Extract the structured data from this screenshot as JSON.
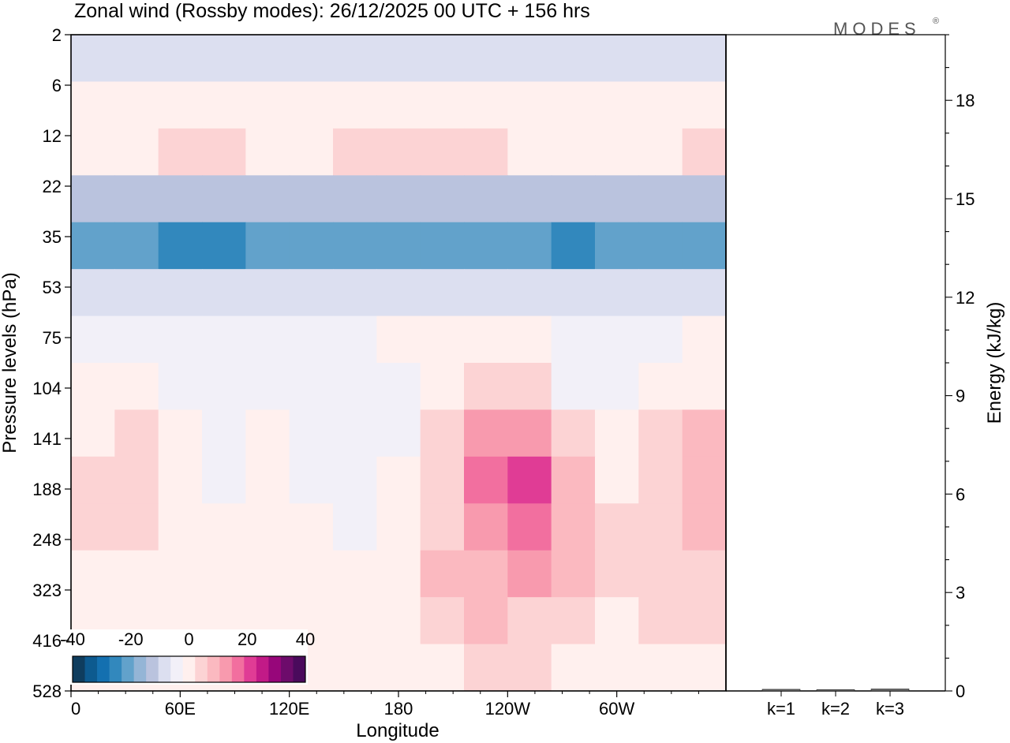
{
  "title": "Zonal wind (Rossby modes):  26/12/2025  00 UTC  + 156 hrs",
  "logo": "MODES",
  "logo_mark": "®",
  "chart_data": [
    {
      "type": "heatmap",
      "title": "Zonal wind (Rossby modes):  26/12/2025  00 UTC  + 156 hrs",
      "xlabel": "Longitude",
      "ylabel": "Pressure levels (hPa)",
      "x_ticks": [
        "0",
        "60E",
        "120E",
        "180",
        "120W",
        "60W"
      ],
      "y_ticks": [
        "2",
        "6",
        "12",
        "22",
        "35",
        "53",
        "75",
        "104",
        "141",
        "188",
        "248",
        "323",
        "416",
        "528"
      ],
      "colorbar": {
        "ticks": [
          "-40",
          "-20",
          "0",
          "20",
          "40"
        ],
        "range": [
          -40,
          40
        ],
        "colors": [
          "#0f3d5e",
          "#0d5a8f",
          "#1470b0",
          "#3288bd",
          "#62a2cb",
          "#94b5d6",
          "#bac3de",
          "#dcdff0",
          "#f2f0f8",
          "#fff0ee",
          "#fcd3d4",
          "#fbb9c0",
          "#f89aae",
          "#f26f9f",
          "#e03c95",
          "#c21a87",
          "#97067a",
          "#6d0b6b",
          "#4a0a5c"
        ]
      },
      "field": [
        {
          "level": "2",
          "values": [
            -10,
            -10,
            -10,
            -10,
            -10,
            -10,
            -10,
            -10,
            -10,
            -10,
            -10,
            -10,
            -10,
            -10,
            -10
          ]
        },
        {
          "level": "6",
          "values": [
            1,
            1,
            1,
            1,
            2,
            2,
            2,
            2,
            2,
            2,
            1,
            1,
            1,
            1,
            1
          ]
        },
        {
          "level": "12",
          "values": [
            2,
            2,
            3,
            3,
            2,
            2,
            4,
            4,
            4,
            3,
            2,
            2,
            2,
            2,
            3
          ]
        },
        {
          "level": "22",
          "values": [
            -12,
            -12,
            -12,
            -12,
            -12,
            -12,
            -12,
            -12,
            -12,
            -12,
            -12,
            -12,
            -12,
            -12,
            -12
          ]
        },
        {
          "level": "35",
          "values": [
            -20,
            -22,
            -24,
            -24,
            -23,
            -22,
            -19,
            -19,
            -19,
            -20,
            -22,
            -24,
            -23,
            -22,
            -20
          ]
        },
        {
          "level": "53",
          "values": [
            -10,
            -10,
            -10,
            -10,
            -10,
            -10,
            -10,
            -10,
            -10,
            -10,
            -10,
            -10,
            -10,
            -10,
            -10
          ]
        },
        {
          "level": "75",
          "values": [
            -3,
            -3,
            -4,
            -4,
            -4,
            -4,
            -3,
            -1,
            1,
            2,
            1,
            -3,
            -4,
            -3,
            -2
          ]
        },
        {
          "level": "104",
          "values": [
            -2,
            -2,
            -3,
            -4,
            -3,
            -4,
            -5,
            -3,
            2,
            6,
            5,
            -3,
            -4,
            -2,
            1
          ]
        },
        {
          "level": "141",
          "values": [
            2,
            3,
            -2,
            -3,
            -2,
            -4,
            -6,
            -3,
            4,
            12,
            14,
            3,
            0,
            5,
            7
          ]
        },
        {
          "level": "188",
          "values": [
            4,
            4,
            -2,
            -3,
            -2,
            -3,
            -5,
            -2,
            6,
            16,
            22,
            8,
            2,
            6,
            9
          ]
        },
        {
          "level": "248",
          "values": [
            4,
            3,
            -2,
            -2,
            -2,
            -2,
            -3,
            -1,
            6,
            14,
            18,
            10,
            3,
            5,
            7
          ]
        },
        {
          "level": "323",
          "values": [
            2,
            2,
            -1,
            1,
            2,
            1,
            -2,
            0,
            7,
            10,
            12,
            7,
            3,
            5,
            5
          ]
        },
        {
          "level": "416",
          "values": [
            1,
            1,
            0,
            2,
            2,
            1,
            -1,
            0,
            5,
            7,
            6,
            3,
            2,
            3,
            3
          ]
        },
        {
          "level": "528",
          "values": [
            0,
            1,
            0,
            1,
            1,
            0,
            0,
            0,
            2,
            3,
            3,
            1,
            -1,
            1,
            1
          ]
        }
      ]
    },
    {
      "type": "bar",
      "title": "",
      "xlabel": "",
      "ylabel": "Energy (kJ/kg)",
      "categories": [
        "k=1",
        "k=2",
        "k=3"
      ],
      "values": [
        0.05,
        0.04,
        0.06
      ],
      "ylim": [
        0,
        20
      ],
      "y_ticks": [
        "0",
        "3",
        "6",
        "9",
        "12",
        "15",
        "18"
      ]
    }
  ]
}
